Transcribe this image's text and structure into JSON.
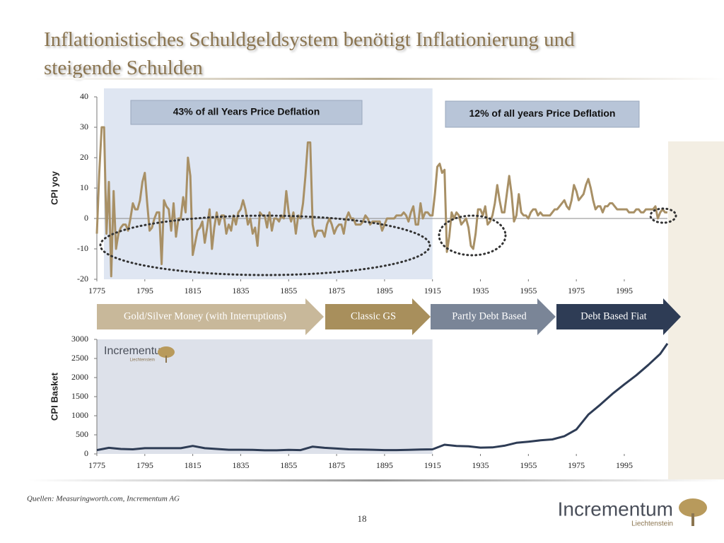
{
  "title": "Inflationistisches Schuldgeldsystem benötigt Inflationierung und steigende Schulden",
  "phases": [
    "Gold/Silver Money (with Interruptions)",
    "Classic GS",
    "Partly Debt Based",
    "Debt Based Fiat"
  ],
  "logo": {
    "name": "Incrementum",
    "sub": "Liechtenstein"
  },
  "source": "Quellen: Measuringworth.com, Incrementum AG",
  "page_number": "18",
  "chart_data": [
    {
      "type": "line",
      "y_label": "CPI yoy",
      "annotations": [
        "43% of all Years Price Deflation",
        "12% of all years Price Deflation"
      ],
      "xlim": [
        1775,
        2013
      ],
      "xticks": [
        1775,
        1795,
        1815,
        1835,
        1855,
        1875,
        1895,
        1915,
        1935,
        1955,
        1975,
        1995
      ],
      "ylim": [
        -20,
        40
      ],
      "yticks": [
        -20,
        -10,
        0,
        10,
        20,
        30,
        40
      ],
      "series": [
        {
          "name": "CPI yoy",
          "color": "#a89066",
          "x": [
            1775,
            1776,
            1777,
            1778,
            1779,
            1780,
            1781,
            1782,
            1783,
            1784,
            1785,
            1786,
            1787,
            1788,
            1789,
            1790,
            1791,
            1792,
            1793,
            1794,
            1795,
            1796,
            1797,
            1798,
            1799,
            1800,
            1801,
            1802,
            1803,
            1804,
            1805,
            1806,
            1807,
            1808,
            1809,
            1810,
            1811,
            1812,
            1813,
            1814,
            1815,
            1816,
            1817,
            1818,
            1819,
            1820,
            1821,
            1822,
            1823,
            1824,
            1825,
            1826,
            1827,
            1828,
            1829,
            1830,
            1831,
            1832,
            1833,
            1834,
            1835,
            1836,
            1837,
            1838,
            1839,
            1840,
            1841,
            1842,
            1843,
            1844,
            1845,
            1846,
            1847,
            1848,
            1849,
            1850,
            1851,
            1852,
            1853,
            1854,
            1855,
            1856,
            1857,
            1858,
            1859,
            1860,
            1861,
            1862,
            1863,
            1864,
            1865,
            1866,
            1867,
            1868,
            1869,
            1870,
            1871,
            1872,
            1873,
            1874,
            1875,
            1876,
            1877,
            1878,
            1879,
            1880,
            1881,
            1882,
            1883,
            1884,
            1885,
            1886,
            1887,
            1888,
            1889,
            1890,
            1891,
            1892,
            1893,
            1894,
            1895,
            1896,
            1897,
            1898,
            1899,
            1900,
            1901,
            1902,
            1903,
            1904,
            1905,
            1906,
            1907,
            1908,
            1909,
            1910,
            1911,
            1912,
            1913,
            1914,
            1915,
            1916,
            1917,
            1918,
            1919,
            1920,
            1921,
            1922,
            1923,
            1924,
            1925,
            1926,
            1927,
            1928,
            1929,
            1930,
            1931,
            1932,
            1933,
            1934,
            1935,
            1936,
            1937,
            1938,
            1939,
            1940,
            1941,
            1942,
            1943,
            1944,
            1945,
            1946,
            1947,
            1948,
            1949,
            1950,
            1951,
            1952,
            1953,
            1954,
            1955,
            1956,
            1957,
            1958,
            1959,
            1960,
            1961,
            1962,
            1963,
            1964,
            1965,
            1966,
            1967,
            1968,
            1969,
            1970,
            1971,
            1972,
            1973,
            1974,
            1975,
            1976,
            1977,
            1978,
            1979,
            1980,
            1981,
            1982,
            1983,
            1984,
            1985,
            1986,
            1987,
            1988,
            1989,
            1990,
            1991,
            1992,
            1993,
            1994,
            1995,
            1996,
            1997,
            1998,
            1999,
            2000,
            2001,
            2002,
            2003,
            2004,
            2005,
            2006,
            2007,
            2008,
            2009,
            2010,
            2011,
            2012,
            2013
          ],
          "values": [
            -5,
            15,
            30,
            30,
            -5,
            12,
            -19,
            9,
            -10,
            -5,
            -3,
            -2,
            -2,
            -4,
            0,
            5,
            3,
            3,
            6,
            12,
            15,
            5,
            -4,
            -3,
            0,
            2,
            2,
            -15,
            6,
            4,
            3,
            -4,
            5,
            -6,
            0,
            0,
            7,
            2,
            20,
            14,
            -12,
            -8,
            -4,
            -3,
            -1,
            -8,
            -3,
            3,
            -10,
            -3,
            2,
            -2,
            1,
            1,
            -5,
            -2,
            -4,
            1,
            -2,
            2,
            3,
            6,
            3,
            -2,
            0,
            -5,
            -3,
            -9,
            2,
            1,
            1,
            -3,
            2,
            -4,
            0,
            0,
            -1,
            1,
            0,
            9,
            2,
            -1,
            2,
            -5,
            1,
            0,
            5,
            14,
            25,
            25,
            -2,
            -6,
            -4,
            -4,
            -4,
            -6,
            -2,
            0,
            -2,
            -5,
            -3,
            -2,
            -2,
            -5,
            0,
            2,
            0,
            0,
            -2,
            -2,
            -2,
            -1,
            1,
            0,
            -2,
            -1,
            -1,
            -1,
            -1,
            -4,
            -2,
            0,
            0,
            0,
            0,
            1,
            1,
            1,
            2,
            1,
            -1,
            2,
            4,
            -2,
            -2,
            5,
            0,
            2,
            2,
            1,
            1,
            8,
            17,
            18,
            15,
            16,
            -11,
            -6,
            2,
            0,
            2,
            1,
            -2,
            -1,
            0,
            -3,
            -9,
            -10,
            -5,
            3,
            3,
            1,
            4,
            -2,
            -1,
            1,
            5,
            11,
            6,
            2,
            2,
            8,
            14,
            8,
            -1,
            1,
            8,
            2,
            1,
            1,
            0,
            2,
            3,
            3,
            1,
            2,
            1,
            1,
            1,
            1,
            2,
            3,
            3,
            4,
            5,
            6,
            4,
            3,
            6,
            11,
            9,
            6,
            7,
            8,
            11,
            13,
            10,
            6,
            3,
            4,
            4,
            2,
            4,
            4,
            5,
            5,
            4,
            3,
            3,
            3,
            3,
            3,
            2,
            2,
            2,
            3,
            3,
            2,
            2,
            3,
            3,
            3,
            3,
            4,
            0,
            2,
            3,
            2,
            2
          ]
        }
      ]
    },
    {
      "type": "line",
      "y_label": "CPI Basket",
      "xlim": [
        1775,
        2013
      ],
      "xticks": [
        1775,
        1795,
        1815,
        1835,
        1855,
        1875,
        1895,
        1915,
        1935,
        1955,
        1975,
        1995
      ],
      "ylim": [
        0,
        3000
      ],
      "yticks": [
        0,
        500,
        1000,
        1500,
        2000,
        2500,
        3000
      ],
      "series": [
        {
          "name": "CPI Basket",
          "color": "#2e3c55",
          "x": [
            1775,
            1780,
            1785,
            1790,
            1795,
            1800,
            1805,
            1810,
            1815,
            1820,
            1825,
            1830,
            1835,
            1840,
            1845,
            1850,
            1855,
            1860,
            1865,
            1870,
            1875,
            1880,
            1885,
            1890,
            1895,
            1900,
            1905,
            1910,
            1915,
            1920,
            1925,
            1930,
            1935,
            1940,
            1945,
            1950,
            1955,
            1960,
            1965,
            1970,
            1975,
            1980,
            1985,
            1990,
            1995,
            2000,
            2005,
            2010,
            2013
          ],
          "values": [
            100,
            160,
            130,
            120,
            150,
            150,
            150,
            150,
            210,
            150,
            130,
            110,
            110,
            105,
            95,
            95,
            105,
            100,
            190,
            160,
            140,
            120,
            115,
            110,
            100,
            100,
            105,
            115,
            120,
            240,
            210,
            200,
            165,
            170,
            215,
            290,
            320,
            355,
            380,
            465,
            640,
            1030,
            1290,
            1570,
            1820,
            2060,
            2330,
            2620,
            2890
          ]
        }
      ]
    }
  ]
}
